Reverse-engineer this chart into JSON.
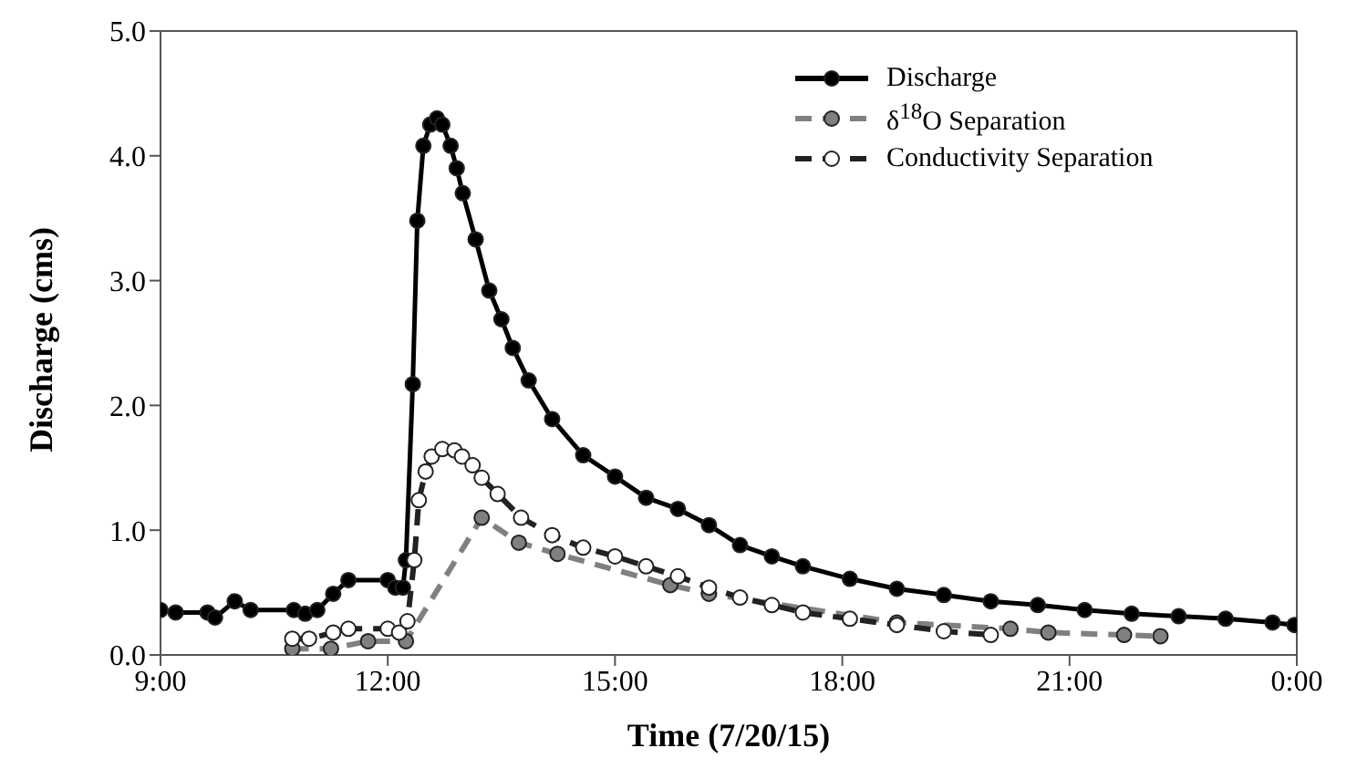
{
  "chart_data": {
    "type": "line",
    "xlabel": "Time (7/20/15)",
    "ylabel": "Discharge (cms)",
    "xlim": [
      9,
      24
    ],
    "xticks": [
      {
        "value": 9,
        "label": "9:00"
      },
      {
        "value": 12,
        "label": "12:00"
      },
      {
        "value": 15,
        "label": "15:00"
      },
      {
        "value": 18,
        "label": "18:00"
      },
      {
        "value": 21,
        "label": "21:00"
      },
      {
        "value": 24,
        "label": "0:00"
      }
    ],
    "ylim": [
      0,
      5
    ],
    "yticks": [
      {
        "value": 0,
        "label": "0.0"
      },
      {
        "value": 1,
        "label": "1.0"
      },
      {
        "value": 2,
        "label": "2.0"
      },
      {
        "value": 3,
        "label": "3.0"
      },
      {
        "value": 4,
        "label": "4.0"
      },
      {
        "value": 5,
        "label": "5.0"
      }
    ],
    "grid": false,
    "legend": "top right",
    "marker": "circle",
    "series": [
      {
        "name": "Discharge",
        "color": "#000000",
        "line_style": "solid",
        "x": [
          9.0,
          9.2,
          9.62,
          9.72,
          9.98,
          10.19,
          10.76,
          10.91,
          11.07,
          11.28,
          11.48,
          12.0,
          12.1,
          12.2,
          12.24,
          12.33,
          12.39,
          12.47,
          12.56,
          12.65,
          12.72,
          12.83,
          12.91,
          12.99,
          13.16,
          13.34,
          13.5,
          13.65,
          13.86,
          14.17,
          14.58,
          15.0,
          15.41,
          15.83,
          16.24,
          16.65,
          17.07,
          17.48,
          18.1,
          18.72,
          19.34,
          19.96,
          20.58,
          21.2,
          21.82,
          22.44,
          23.06,
          23.68,
          23.97
        ],
        "values": [
          0.36,
          0.34,
          0.34,
          0.3,
          0.43,
          0.36,
          0.36,
          0.33,
          0.36,
          0.49,
          0.6,
          0.6,
          0.54,
          0.54,
          0.76,
          2.17,
          3.48,
          4.08,
          4.25,
          4.3,
          4.25,
          4.08,
          3.9,
          3.7,
          3.33,
          2.92,
          2.69,
          2.46,
          2.2,
          1.89,
          1.6,
          1.43,
          1.26,
          1.17,
          1.04,
          0.88,
          0.79,
          0.71,
          0.61,
          0.53,
          0.48,
          0.43,
          0.4,
          0.36,
          0.33,
          0.31,
          0.29,
          0.26,
          0.24
        ]
      },
      {
        "name": "δ$^{18}$O Separation",
        "color": "#808080",
        "line_style": "dashed",
        "x": [
          10.74,
          11.25,
          11.74,
          12.24,
          13.24,
          13.73,
          14.24,
          15.73,
          16.24,
          18.72,
          20.22,
          20.72,
          21.72,
          22.2
        ],
        "values": [
          0.05,
          0.05,
          0.11,
          0.11,
          1.1,
          0.9,
          0.81,
          0.56,
          0.49,
          0.26,
          0.21,
          0.18,
          0.16,
          0.15
        ]
      },
      {
        "name": "Conductivity Separation",
        "color": "#ffffff",
        "line_style": "dashed",
        "x": [
          10.74,
          10.96,
          11.28,
          11.48,
          12.0,
          12.15,
          12.26,
          12.35,
          12.41,
          12.5,
          12.58,
          12.72,
          12.88,
          12.98,
          13.12,
          13.24,
          13.45,
          13.76,
          14.17,
          14.58,
          15.0,
          15.41,
          15.83,
          16.24,
          16.65,
          17.07,
          17.48,
          18.1,
          18.72,
          19.34,
          19.96
        ],
        "values": [
          0.13,
          0.13,
          0.18,
          0.21,
          0.21,
          0.18,
          0.27,
          0.76,
          1.24,
          1.47,
          1.59,
          1.65,
          1.64,
          1.59,
          1.52,
          1.42,
          1.29,
          1.1,
          0.96,
          0.86,
          0.79,
          0.71,
          0.63,
          0.54,
          0.46,
          0.4,
          0.34,
          0.29,
          0.24,
          0.19,
          0.16
        ]
      }
    ]
  }
}
